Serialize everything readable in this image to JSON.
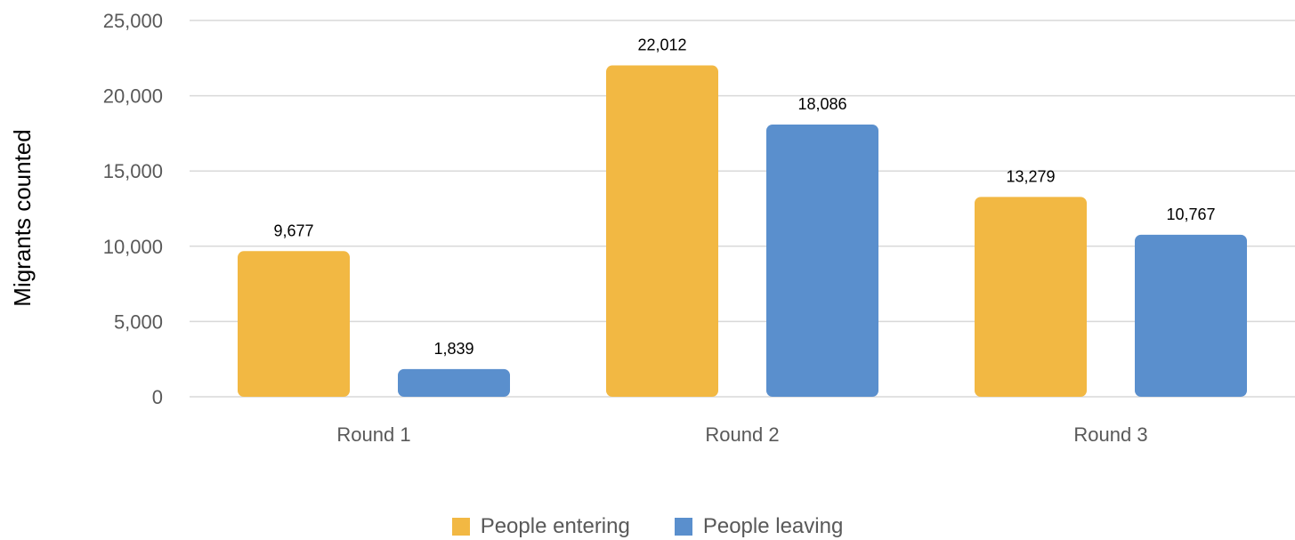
{
  "chart_data": {
    "type": "bar",
    "categories": [
      "Round 1",
      "Round 2",
      "Round 3"
    ],
    "series": [
      {
        "name": "People entering",
        "color": "#F2B843",
        "values": [
          9677,
          22012,
          13279
        ],
        "labels": [
          "9,677",
          "22,012",
          "13,279"
        ]
      },
      {
        "name": "People leaving",
        "color": "#5A8FCD",
        "values": [
          1839,
          18086,
          10767
        ],
        "labels": [
          "1,839",
          "18,086",
          "10,767"
        ]
      }
    ],
    "ylabel": "Migrants counted",
    "xlabel": "",
    "ylim": [
      0,
      25000
    ],
    "yticks": [
      0,
      5000,
      10000,
      15000,
      20000,
      25000
    ],
    "ytick_labels": [
      "0",
      "5,000",
      "10,000",
      "15,000",
      "20,000",
      "25,000"
    ],
    "grid": true,
    "legend_position": "bottom"
  }
}
